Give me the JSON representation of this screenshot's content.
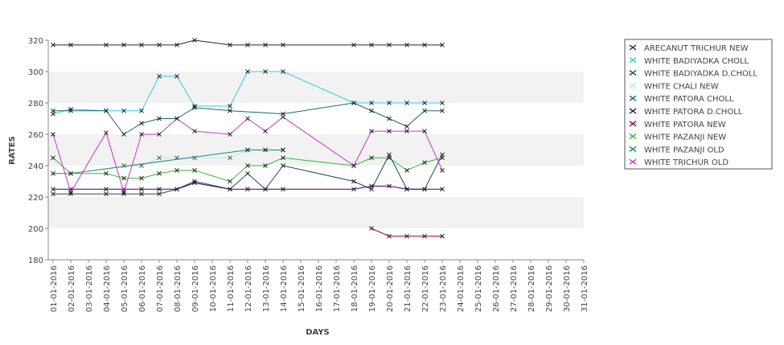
{
  "chart_data": {
    "type": "line",
    "title": "",
    "xlabel": "DAYS",
    "ylabel": "RATES",
    "ylim": [
      180,
      320
    ],
    "yticks": [
      180,
      200,
      220,
      240,
      260,
      280,
      300,
      320
    ],
    "grid": "horizontal-bands",
    "legend_position": "right",
    "x": [
      "01-01-2016",
      "02-01-2016",
      "03-01-2016",
      "04-01-2016",
      "05-01-2016",
      "06-01-2016",
      "07-01-2016",
      "08-01-2016",
      "09-01-2016",
      "10-01-2016",
      "11-01-2016",
      "12-01-2016",
      "13-01-2016",
      "14-01-2016",
      "15-01-2016",
      "16-01-2016",
      "17-01-2016",
      "18-01-2016",
      "19-01-2016",
      "20-01-2016",
      "21-01-2016",
      "22-01-2016",
      "23-01-2016",
      "24-01-2016",
      "25-01-2016",
      "26-01-2016",
      "27-01-2016",
      "28-01-2016",
      "29-01-2016",
      "30-01-2016",
      "31-01-2016"
    ],
    "series": [
      {
        "name": "ARECANUT TRICHUR NEW",
        "color": "#1a2a3a",
        "values": [
          317,
          317,
          null,
          317,
          317,
          317,
          317,
          317,
          320,
          null,
          317,
          317,
          317,
          317,
          null,
          null,
          null,
          317,
          317,
          317,
          317,
          317,
          317,
          null,
          null,
          null,
          null,
          null,
          null,
          null,
          null
        ]
      },
      {
        "name": "WHITE BADIYADKA CHOLL",
        "color": "#33ccdd",
        "values": [
          273,
          276,
          null,
          275,
          275,
          275,
          297,
          297,
          278,
          null,
          278,
          300,
          300,
          300,
          null,
          null,
          null,
          280,
          280,
          280,
          280,
          280,
          280,
          null,
          null,
          null,
          null,
          null,
          null,
          null,
          null
        ]
      },
      {
        "name": "WHITE BADIYADKA D.CHOLL",
        "color": "#1a4a5a",
        "values": [
          222,
          222,
          null,
          222,
          222,
          222,
          222,
          225,
          230,
          null,
          225,
          235,
          225,
          240,
          null,
          null,
          null,
          230,
          225,
          247,
          225,
          225,
          247,
          null,
          null,
          null,
          null,
          null,
          null,
          null,
          null
        ]
      },
      {
        "name": "WHITE CHALI NEW",
        "color": "#aaeeee",
        "values": [
          null,
          null,
          null,
          null,
          240,
          240,
          245,
          245,
          245,
          null,
          245,
          250,
          250,
          250,
          null,
          null,
          null,
          null,
          null,
          null,
          null,
          null,
          null,
          null,
          null,
          null,
          null,
          null,
          null,
          null,
          null
        ]
      },
      {
        "name": "WHITE PATORA CHOLL",
        "color": "#1a6a6a",
        "values": [
          275,
          275,
          null,
          275,
          260,
          267,
          270,
          270,
          277,
          null,
          275,
          null,
          null,
          273,
          null,
          null,
          null,
          280,
          275,
          270,
          265,
          275,
          275,
          null,
          null,
          null,
          null,
          null,
          null,
          null,
          null
        ]
      },
      {
        "name": "WHITE PATORA D.CHOLL",
        "color": "#330066",
        "values": [
          225,
          225,
          null,
          225,
          225,
          225,
          225,
          225,
          229,
          null,
          225,
          225,
          225,
          225,
          null,
          null,
          null,
          225,
          227,
          227,
          225,
          225,
          225,
          null,
          null,
          null,
          null,
          null,
          null,
          null,
          null
        ]
      },
      {
        "name": "WHITE PATORA NEW",
        "color": "#990033",
        "values": [
          null,
          null,
          null,
          null,
          null,
          null,
          null,
          null,
          null,
          null,
          null,
          null,
          null,
          null,
          null,
          null,
          null,
          null,
          200,
          195,
          195,
          195,
          195,
          null,
          null,
          null,
          null,
          null,
          null,
          null,
          null
        ]
      },
      {
        "name": "WHITE PAZANJI NEW",
        "color": "#33bb33",
        "values": [
          245,
          235,
          null,
          235,
          232,
          232,
          235,
          237,
          237,
          null,
          230,
          240,
          240,
          245,
          null,
          null,
          null,
          240,
          245,
          245,
          237,
          242,
          245,
          null,
          null,
          null,
          null,
          null,
          null,
          null,
          null
        ]
      },
      {
        "name": "WHITE PAZANJI OLD",
        "color": "#1a8a6a",
        "values": [
          235,
          235,
          null,
          null,
          null,
          null,
          null,
          null,
          null,
          null,
          null,
          250,
          250,
          250,
          null,
          null,
          null,
          null,
          null,
          null,
          null,
          null,
          null,
          null,
          null,
          null,
          null,
          null,
          null,
          null,
          null
        ]
      },
      {
        "name": "WHITE TRICHUR OLD",
        "color": "#cc33cc",
        "values": [
          260,
          223,
          null,
          261,
          223,
          260,
          260,
          270,
          262,
          null,
          260,
          270,
          262,
          271,
          null,
          null,
          null,
          240,
          262,
          262,
          262,
          262,
          237,
          null,
          null,
          null,
          null,
          null,
          null,
          null,
          null
        ]
      }
    ]
  }
}
